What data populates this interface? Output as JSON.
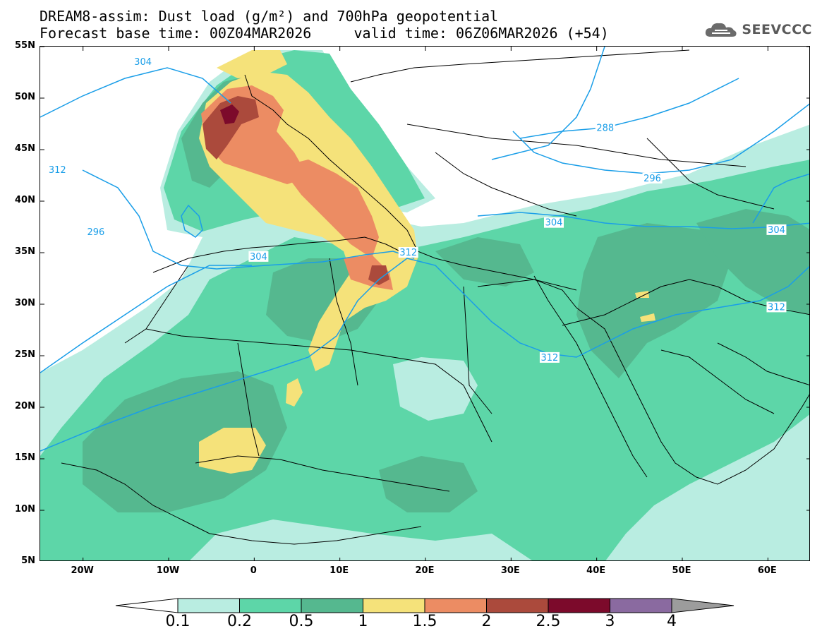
{
  "header": {
    "title_line1": "DREAM8-assim: Dust load (g/m²) and 700hPa geopotential",
    "title_line2": "Forecast base time: 00Z04MAR2026     valid time: 06Z06MAR2026 (+54)",
    "logo_text": "SEEVCCC",
    "logo_icon": "cloud-icon"
  },
  "map": {
    "lon_range": [
      -25,
      65
    ],
    "lat_range": [
      5,
      55
    ],
    "lat_ticks": [
      "55N",
      "50N",
      "45N",
      "40N",
      "35N",
      "30N",
      "25N",
      "20N",
      "15N",
      "10N",
      "5N"
    ],
    "lon_ticks": [
      "20W",
      "10W",
      "0",
      "10E",
      "20E",
      "30E",
      "40E",
      "50E",
      "60E"
    ],
    "contour_labels": [
      {
        "text": "304",
        "lon": -13,
        "lat": 53.5
      },
      {
        "text": "312",
        "lon": -23,
        "lat": 43
      },
      {
        "text": "296",
        "lon": -18.5,
        "lat": 37
      },
      {
        "text": "304",
        "lon": 0.5,
        "lat": 34.6
      },
      {
        "text": "312",
        "lon": 18,
        "lat": 35
      },
      {
        "text": "288",
        "lon": 41,
        "lat": 47.1
      },
      {
        "text": "296",
        "lon": 46.5,
        "lat": 42.2
      },
      {
        "text": "304",
        "lon": 35,
        "lat": 37.9
      },
      {
        "text": "304",
        "lon": 61,
        "lat": 37.2
      },
      {
        "text": "312",
        "lon": 61,
        "lat": 29.7
      },
      {
        "text": "312",
        "lon": 34.5,
        "lat": 24.8
      }
    ]
  },
  "colorbar": {
    "levels": [
      "0.1",
      "0.2",
      "0.5",
      "1",
      "1.5",
      "2",
      "2.5",
      "3",
      "4"
    ],
    "colors": [
      "#ffffff",
      "#b9ede1",
      "#5dd6a8",
      "#55b88f",
      "#f5e27a",
      "#ec8c63",
      "#ab4a3c",
      "#7c0a2b",
      "#8a6aa0",
      "#9c9c9c"
    ]
  }
}
